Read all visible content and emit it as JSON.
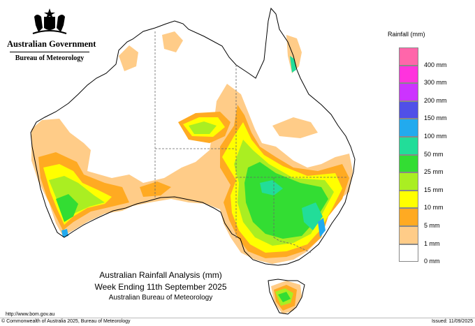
{
  "header": {
    "government": "Australian Government",
    "agency": "Bureau of Meteorology"
  },
  "icons": {
    "crest": "commonwealth-coat-of-arms-icon"
  },
  "legend": {
    "title": "Rainfall (mm)",
    "items": [
      {
        "label": "",
        "color": "#ff66aa"
      },
      {
        "label": "400 mm",
        "color": "#ff33dd"
      },
      {
        "label": "300 mm",
        "color": "#cc33ff"
      },
      {
        "label": "200 mm",
        "color": "#5050e8"
      },
      {
        "label": "150 mm",
        "color": "#22aaee"
      },
      {
        "label": "100 mm",
        "color": "#22dd99"
      },
      {
        "label": "50 mm",
        "color": "#33dd33"
      },
      {
        "label": "25 mm",
        "color": "#aaee22"
      },
      {
        "label": "15 mm",
        "color": "#ffff00"
      },
      {
        "label": "10 mm",
        "color": "#ffaa22"
      },
      {
        "label": "5 mm",
        "color": "#ffcc88"
      },
      {
        "label": "1 mm",
        "color": "#ffffff"
      },
      {
        "label": "0 mm",
        "color": ""
      }
    ]
  },
  "map": {
    "title_line1": "Australian Rainfall Analysis (mm)",
    "title_line2": "Week Ending 11th September 2025",
    "title_line3": "Australian Bureau of Meteorology",
    "colors": {
      "land": "#ffffff",
      "coast": "#000000",
      "border": "#666666",
      "r1": "#ffcc88",
      "r5": "#ffaa22",
      "r10": "#ffff00",
      "r15": "#aaee22",
      "r25": "#33dd33",
      "r50": "#22dd99",
      "r100": "#22aaee",
      "r150": "#5050e8"
    }
  },
  "footer": {
    "url": "http://www.bom.gov.au",
    "copyright": "© Commonwealth of Australia 2025, Bureau of Meteorology",
    "issued": "Issued: 11/09/2025"
  }
}
